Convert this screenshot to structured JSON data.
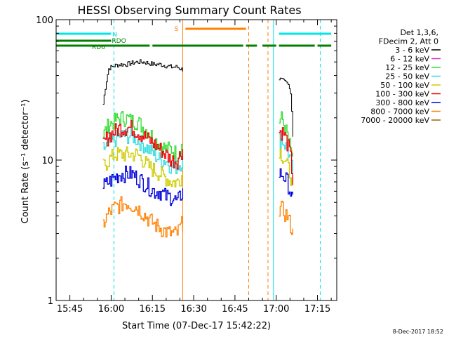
{
  "chart_data": {
    "type": "line",
    "title": "HESSI Observing Summary Count Rates",
    "xlabel": "Start Time (07-Dec-17 15:42:22)",
    "ylabel": "Count Rate (s⁻¹ detector⁻¹)",
    "yscale": "log",
    "ylim": [
      1,
      100
    ],
    "xlim": [
      "15:40",
      "17:22"
    ],
    "xticks": [
      "15:45",
      "16:00",
      "16:15",
      "16:30",
      "16:45",
      "17:00",
      "17:15"
    ],
    "yticks": [
      {
        "value": 1,
        "label": "1"
      },
      {
        "value": 10,
        "label": "10"
      },
      {
        "value": 100,
        "label": "100"
      }
    ],
    "timestamp": "8-Dec-2017 18:52",
    "legend": {
      "placement": "right",
      "header": [
        "Det 1,3,6,",
        "FDecim 2, Att 0"
      ],
      "entries": [
        {
          "label": "3 - 6 keV",
          "color": "#000000"
        },
        {
          "label": "6 - 12 keV",
          "color": "#cc33cc"
        },
        {
          "label": "12 - 25 keV",
          "color": "#33dd33"
        },
        {
          "label": "25 - 50 keV",
          "color": "#33dddd"
        },
        {
          "label": "50 - 100 keV",
          "color": "#cccc00"
        },
        {
          "label": "100 - 300 keV",
          "color": "#ee0000"
        },
        {
          "label": "300 - 800 keV",
          "color": "#0000dd"
        },
        {
          "label": "800 - 7000 keV",
          "color": "#ff8000"
        },
        {
          "label": "7000 - 20000 keV",
          "color": "#a06000"
        }
      ]
    },
    "flags": [
      {
        "label": "N",
        "color": "#00e5e5",
        "segments": [
          [
            "15:40",
            "16:00"
          ],
          [
            "17:01",
            "17:20"
          ]
        ]
      },
      {
        "label": "S",
        "color": "#ff8000",
        "segments": [
          [
            "16:27",
            "16:49"
          ]
        ]
      },
      {
        "label": "RDO",
        "color": "#008000",
        "segments": [
          [
            "15:40",
            "16:00"
          ]
        ]
      },
      {
        "label": "RD6",
        "color": "#008000",
        "segments": [
          [
            "15:40",
            "16:14"
          ],
          [
            "16:15",
            "16:48"
          ],
          [
            "16:49",
            "16:53"
          ],
          [
            "16:55",
            "17:00"
          ],
          [
            "17:01",
            "17:14"
          ],
          [
            "17:15",
            "17:20"
          ]
        ]
      }
    ],
    "vlines": [
      {
        "time": "15:40",
        "style": "solid",
        "color": "#00e5e5"
      },
      {
        "time": "16:01",
        "style": "dashed",
        "color": "#00e5e5"
      },
      {
        "time": "16:26",
        "style": "solid",
        "color": "#ff8000"
      },
      {
        "time": "16:50",
        "style": "dashed",
        "color": "#ff8000"
      },
      {
        "time": "16:57",
        "style": "dashed",
        "color": "#ff8000"
      },
      {
        "time": "16:59",
        "style": "solid",
        "color": "#00e5e5"
      },
      {
        "time": "17:16",
        "style": "dashed",
        "color": "#00e5e5"
      }
    ],
    "series": [
      {
        "name": "3 - 6 keV",
        "color": "#000000",
        "segments": [
          {
            "start": "15:57",
            "end": "16:26",
            "values": [
              25,
              45,
              47,
              48,
              48,
              49,
              50,
              50,
              49,
              48,
              48,
              47,
              46,
              46,
              44
            ]
          },
          {
            "start": "17:01",
            "end": "17:06",
            "values": [
              38,
              37,
              36,
              35,
              33,
              15
            ]
          }
        ]
      },
      {
        "name": "12 - 25 keV",
        "color": "#33dd33",
        "segments": [
          {
            "start": "15:57",
            "end": "16:26",
            "values": [
              15,
              18,
              19,
              20,
              20,
              19,
              19,
              17,
              16,
              14,
              13,
              12,
              12,
              11,
              13
            ]
          },
          {
            "start": "17:01",
            "end": "17:06",
            "values": [
              19,
              20,
              17,
              15,
              12,
              10
            ]
          }
        ]
      },
      {
        "name": "25 - 50 keV",
        "color": "#33dddd",
        "segments": [
          {
            "start": "15:57",
            "end": "16:26",
            "values": [
              12,
              13,
              14,
              15,
              15,
              15,
              14,
              13,
              12,
              11,
              10,
              10,
              9,
              9,
              10
            ]
          },
          {
            "start": "17:01",
            "end": "17:06",
            "values": [
              14,
              14,
              13,
              12,
              10,
              8
            ]
          }
        ]
      },
      {
        "name": "50 - 100 keV",
        "color": "#cccc00",
        "segments": [
          {
            "start": "15:57",
            "end": "16:26",
            "values": [
              9,
              10,
              11,
              11,
              11,
              11,
              11,
              10,
              9,
              8.5,
              8,
              7.5,
              7,
              7,
              8
            ]
          },
          {
            "start": "17:01",
            "end": "17:06",
            "values": [
              12,
              11,
              10,
              9,
              8,
              6
            ]
          }
        ]
      },
      {
        "name": "100 - 300 keV",
        "color": "#ee0000",
        "segments": [
          {
            "start": "15:57",
            "end": "16:26",
            "values": [
              13,
              15,
              16,
              17,
              17,
              17,
              16,
              15,
              14,
              13,
              12,
              11,
              10,
              10,
              12
            ]
          },
          {
            "start": "17:01",
            "end": "17:06",
            "values": [
              16,
              16,
              15,
              13,
              11,
              7
            ]
          }
        ]
      },
      {
        "name": "300 - 800 keV",
        "color": "#0000dd",
        "segments": [
          {
            "start": "15:57",
            "end": "16:26",
            "values": [
              6.5,
              7,
              7.5,
              8,
              8,
              8,
              7.5,
              7,
              6.5,
              6,
              6,
              5.5,
              5.5,
              5,
              6
            ]
          },
          {
            "start": "17:01",
            "end": "17:06",
            "values": [
              8,
              8,
              7.5,
              7,
              6,
              5
            ]
          }
        ]
      },
      {
        "name": "800 - 7000 keV",
        "color": "#ff8000",
        "segments": [
          {
            "start": "15:57",
            "end": "16:26",
            "values": [
              3.5,
              4.2,
              4.6,
              4.8,
              5,
              4.8,
              4.6,
              4.2,
              3.8,
              3.5,
              3.3,
              3.1,
              3,
              3,
              3.6
            ]
          },
          {
            "start": "17:01",
            "end": "17:06",
            "values": [
              4.5,
              4.5,
              4.2,
              4,
              3.5,
              3
            ]
          }
        ]
      }
    ]
  }
}
